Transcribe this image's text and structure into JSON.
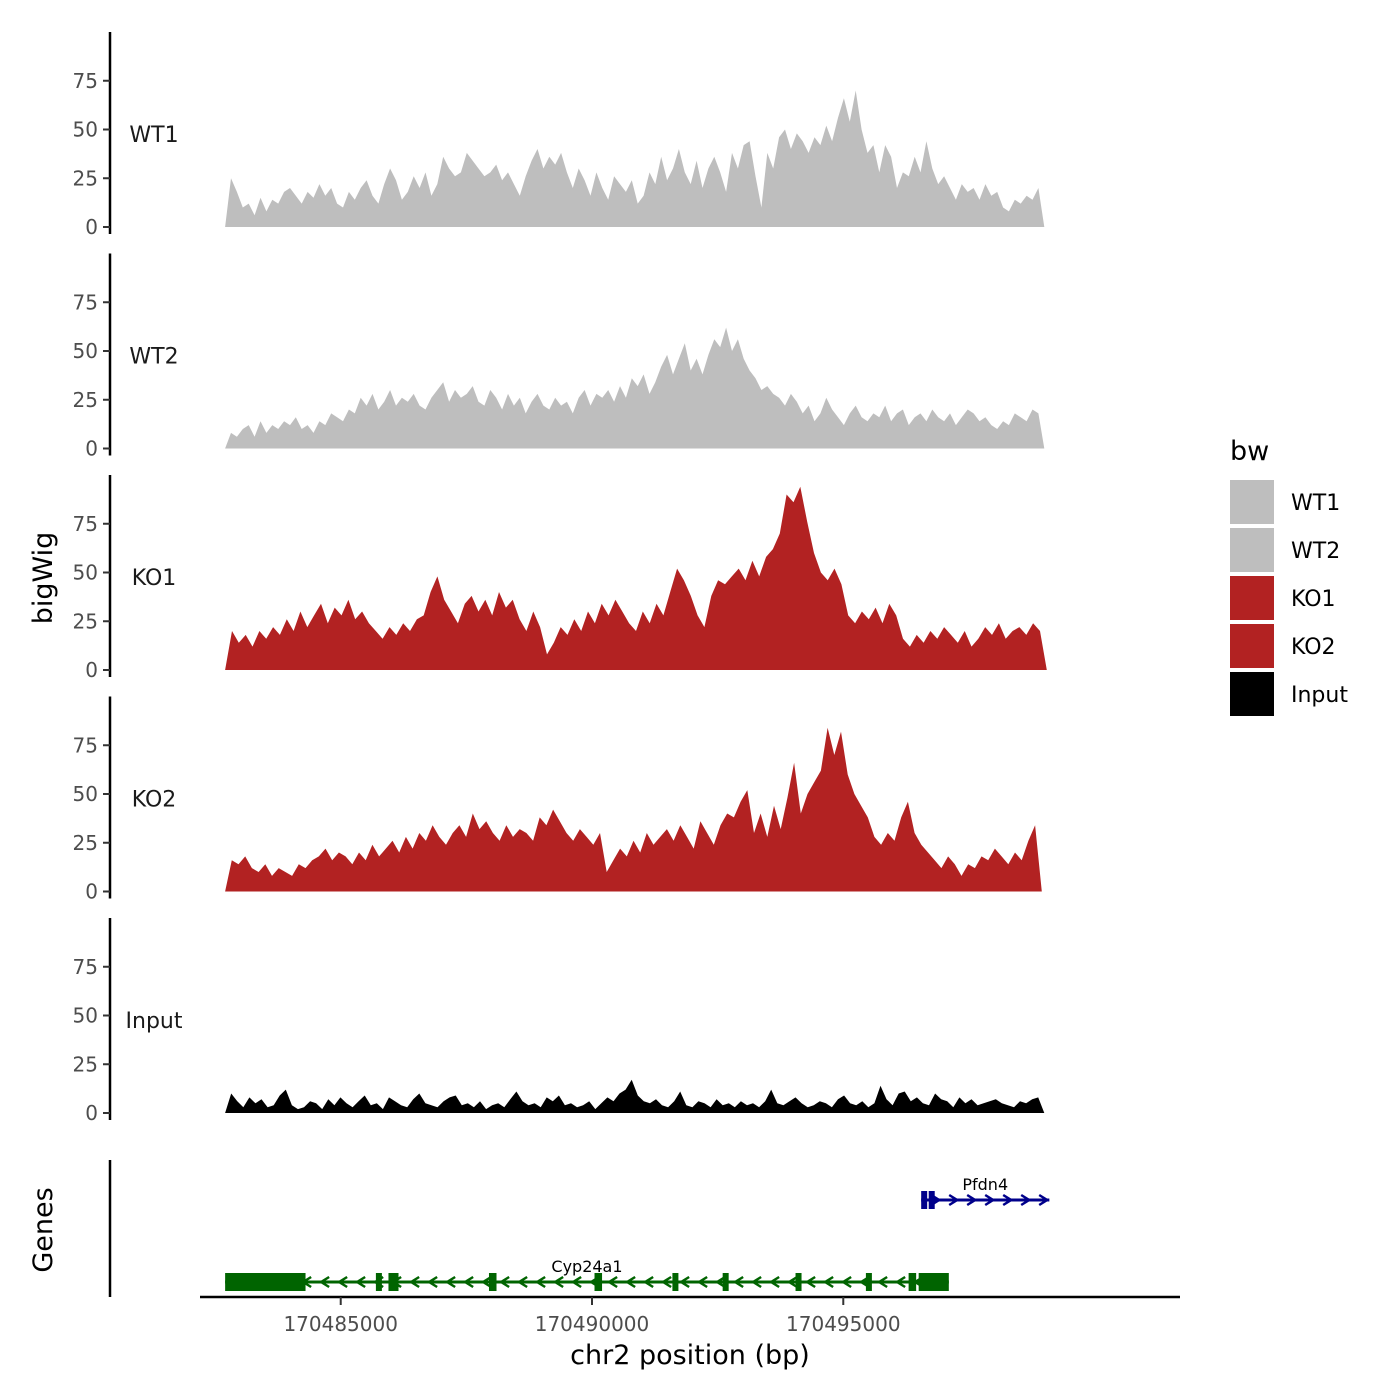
{
  "chart_data": {
    "type": "area",
    "ylabel": "bigWig",
    "xlabel": "chr2 position (bp)",
    "ylim": [
      0,
      100
    ],
    "yticks": [
      0,
      25,
      50,
      75
    ],
    "xlim": [
      170482200,
      170501700
    ],
    "xticks": [
      170485000,
      170490000,
      170495000
    ],
    "xtick_labels": [
      "170485000",
      "170490000",
      "170495000"
    ],
    "legend": {
      "title": "bw",
      "entries": [
        {
          "label": "WT1",
          "color": "#bebebe"
        },
        {
          "label": "WT2",
          "color": "#bebebe"
        },
        {
          "label": "KO1",
          "color": "#b22222"
        },
        {
          "label": "KO2",
          "color": "#b22222"
        },
        {
          "label": "Input",
          "color": "#000000"
        }
      ]
    },
    "series": [
      {
        "name": "WT1",
        "color": "#bebebe",
        "x_start": 170482700,
        "x_end": 170499000,
        "values": [
          0,
          25,
          18,
          10,
          12,
          6,
          15,
          8,
          14,
          12,
          18,
          20,
          16,
          12,
          18,
          15,
          22,
          16,
          20,
          12,
          10,
          18,
          14,
          20,
          24,
          16,
          12,
          22,
          30,
          24,
          14,
          18,
          26,
          20,
          28,
          16,
          22,
          36,
          30,
          26,
          28,
          38,
          34,
          30,
          26,
          28,
          32,
          24,
          28,
          22,
          16,
          26,
          34,
          40,
          30,
          36,
          32,
          38,
          28,
          20,
          30,
          24,
          16,
          28,
          20,
          14,
          26,
          22,
          18,
          24,
          12,
          16,
          28,
          22,
          36,
          24,
          30,
          40,
          28,
          22,
          34,
          20,
          30,
          36,
          28,
          18,
          38,
          30,
          42,
          44,
          26,
          10,
          38,
          30,
          46,
          50,
          40,
          48,
          44,
          38,
          46,
          42,
          52,
          44,
          56,
          66,
          54,
          70,
          50,
          38,
          42,
          28,
          42,
          36,
          20,
          28,
          26,
          36,
          28,
          44,
          30,
          22,
          26,
          20,
          14,
          22,
          18,
          20,
          14,
          22,
          16,
          18,
          10,
          8,
          14,
          12,
          16,
          14,
          20,
          0
        ]
      },
      {
        "name": "WT2",
        "color": "#bebebe",
        "x_start": 170482700,
        "x_end": 170499000,
        "values": [
          0,
          8,
          6,
          10,
          12,
          6,
          14,
          8,
          12,
          10,
          14,
          12,
          16,
          10,
          12,
          8,
          14,
          12,
          18,
          16,
          14,
          20,
          18,
          26,
          22,
          28,
          20,
          24,
          30,
          22,
          26,
          24,
          28,
          22,
          20,
          26,
          30,
          34,
          24,
          30,
          26,
          28,
          32,
          24,
          22,
          30,
          26,
          20,
          28,
          22,
          26,
          18,
          24,
          28,
          22,
          20,
          26,
          22,
          24,
          18,
          26,
          30,
          22,
          28,
          26,
          30,
          24,
          32,
          26,
          36,
          32,
          38,
          28,
          34,
          42,
          48,
          38,
          46,
          54,
          40,
          46,
          38,
          48,
          56,
          52,
          62,
          50,
          56,
          46,
          40,
          36,
          30,
          32,
          28,
          26,
          22,
          28,
          24,
          18,
          22,
          14,
          18,
          26,
          20,
          16,
          12,
          18,
          22,
          16,
          14,
          18,
          16,
          22,
          14,
          18,
          20,
          12,
          16,
          18,
          14,
          20,
          16,
          14,
          18,
          12,
          16,
          20,
          18,
          14,
          16,
          12,
          10,
          14,
          12,
          18,
          16,
          14,
          20,
          18,
          0
        ]
      },
      {
        "name": "KO1",
        "color": "#b22222",
        "x_start": 170482700,
        "x_end": 170499050,
        "values": [
          0,
          20,
          14,
          18,
          12,
          20,
          16,
          22,
          18,
          26,
          20,
          30,
          22,
          28,
          34,
          24,
          32,
          28,
          36,
          26,
          30,
          24,
          20,
          16,
          22,
          18,
          24,
          20,
          26,
          28,
          40,
          48,
          36,
          30,
          24,
          34,
          38,
          30,
          36,
          28,
          40,
          32,
          36,
          26,
          20,
          30,
          22,
          8,
          14,
          22,
          18,
          26,
          20,
          30,
          24,
          34,
          28,
          36,
          30,
          24,
          20,
          30,
          24,
          34,
          28,
          40,
          52,
          46,
          38,
          28,
          22,
          38,
          46,
          44,
          48,
          52,
          46,
          56,
          48,
          58,
          62,
          70,
          90,
          86,
          94,
          76,
          60,
          50,
          46,
          52,
          44,
          28,
          24,
          30,
          26,
          32,
          24,
          34,
          28,
          16,
          12,
          18,
          14,
          20,
          16,
          22,
          18,
          14,
          20,
          12,
          16,
          22,
          18,
          24,
          16,
          20,
          22,
          18,
          24,
          20,
          0
        ]
      },
      {
        "name": "KO2",
        "color": "#b22222",
        "x_start": 170482700,
        "x_end": 170498950,
        "values": [
          0,
          16,
          14,
          18,
          12,
          10,
          14,
          8,
          12,
          10,
          8,
          14,
          12,
          16,
          18,
          22,
          16,
          20,
          18,
          14,
          20,
          16,
          24,
          18,
          22,
          26,
          20,
          28,
          22,
          30,
          26,
          34,
          28,
          24,
          30,
          34,
          28,
          40,
          32,
          36,
          30,
          26,
          34,
          28,
          32,
          30,
          26,
          38,
          34,
          42,
          36,
          30,
          26,
          32,
          28,
          24,
          30,
          10,
          16,
          22,
          18,
          26,
          20,
          30,
          24,
          28,
          32,
          26,
          34,
          28,
          22,
          36,
          30,
          24,
          34,
          40,
          38,
          46,
          52,
          30,
          40,
          28,
          44,
          32,
          48,
          66,
          40,
          50,
          56,
          62,
          84,
          70,
          82,
          60,
          50,
          44,
          38,
          28,
          24,
          30,
          26,
          38,
          46,
          30,
          24,
          20,
          16,
          12,
          18,
          14,
          8,
          14,
          12,
          18,
          16,
          22,
          18,
          14,
          20,
          16,
          26,
          34,
          0
        ]
      },
      {
        "name": "Input",
        "color": "#000000",
        "x_start": 170482700,
        "x_end": 170499000,
        "values": [
          0,
          10,
          6,
          3,
          8,
          5,
          7,
          3,
          4,
          9,
          12,
          4,
          2,
          3,
          6,
          5,
          2,
          7,
          4,
          8,
          5,
          3,
          6,
          9,
          4,
          5,
          2,
          8,
          6,
          4,
          3,
          7,
          10,
          5,
          4,
          3,
          6,
          8,
          9,
          4,
          5,
          3,
          6,
          2,
          4,
          5,
          3,
          7,
          11,
          6,
          4,
          5,
          3,
          8,
          6,
          9,
          4,
          5,
          3,
          4,
          6,
          2,
          5,
          8,
          6,
          10,
          12,
          17,
          9,
          6,
          5,
          7,
          4,
          3,
          6,
          11,
          4,
          3,
          6,
          5,
          3,
          7,
          4,
          5,
          3,
          6,
          4,
          5,
          3,
          6,
          12,
          5,
          4,
          6,
          8,
          5,
          3,
          4,
          6,
          5,
          3,
          7,
          9,
          5,
          4,
          6,
          3,
          5,
          14,
          7,
          4,
          10,
          11,
          6,
          8,
          5,
          4,
          10,
          7,
          6,
          3,
          8,
          5,
          7,
          4,
          5,
          6,
          7,
          5,
          4,
          3,
          6,
          5,
          7,
          8,
          0
        ]
      }
    ],
    "genes": [
      {
        "name": "Cyp24a1",
        "strand": "-",
        "color": "#006400",
        "start": 170482700,
        "end": 170497100,
        "exons": [
          [
            170482700,
            170484300
          ],
          [
            170485700,
            170485800
          ],
          [
            170485950,
            170486150
          ],
          [
            170487950,
            170488100
          ],
          [
            170490050,
            170490200
          ],
          [
            170491600,
            170491700
          ],
          [
            170492600,
            170492700
          ],
          [
            170494050,
            170494150
          ],
          [
            170495450,
            170495550
          ],
          [
            170496300,
            170496450
          ],
          [
            170496500,
            170497100
          ]
        ]
      },
      {
        "name": "Pfdn4",
        "strand": "+",
        "color": "#00008b",
        "start": 170496550,
        "end": 170499100,
        "exons": [
          [
            170496550,
            170496650
          ],
          [
            170496700,
            170496800
          ]
        ]
      }
    ]
  }
}
